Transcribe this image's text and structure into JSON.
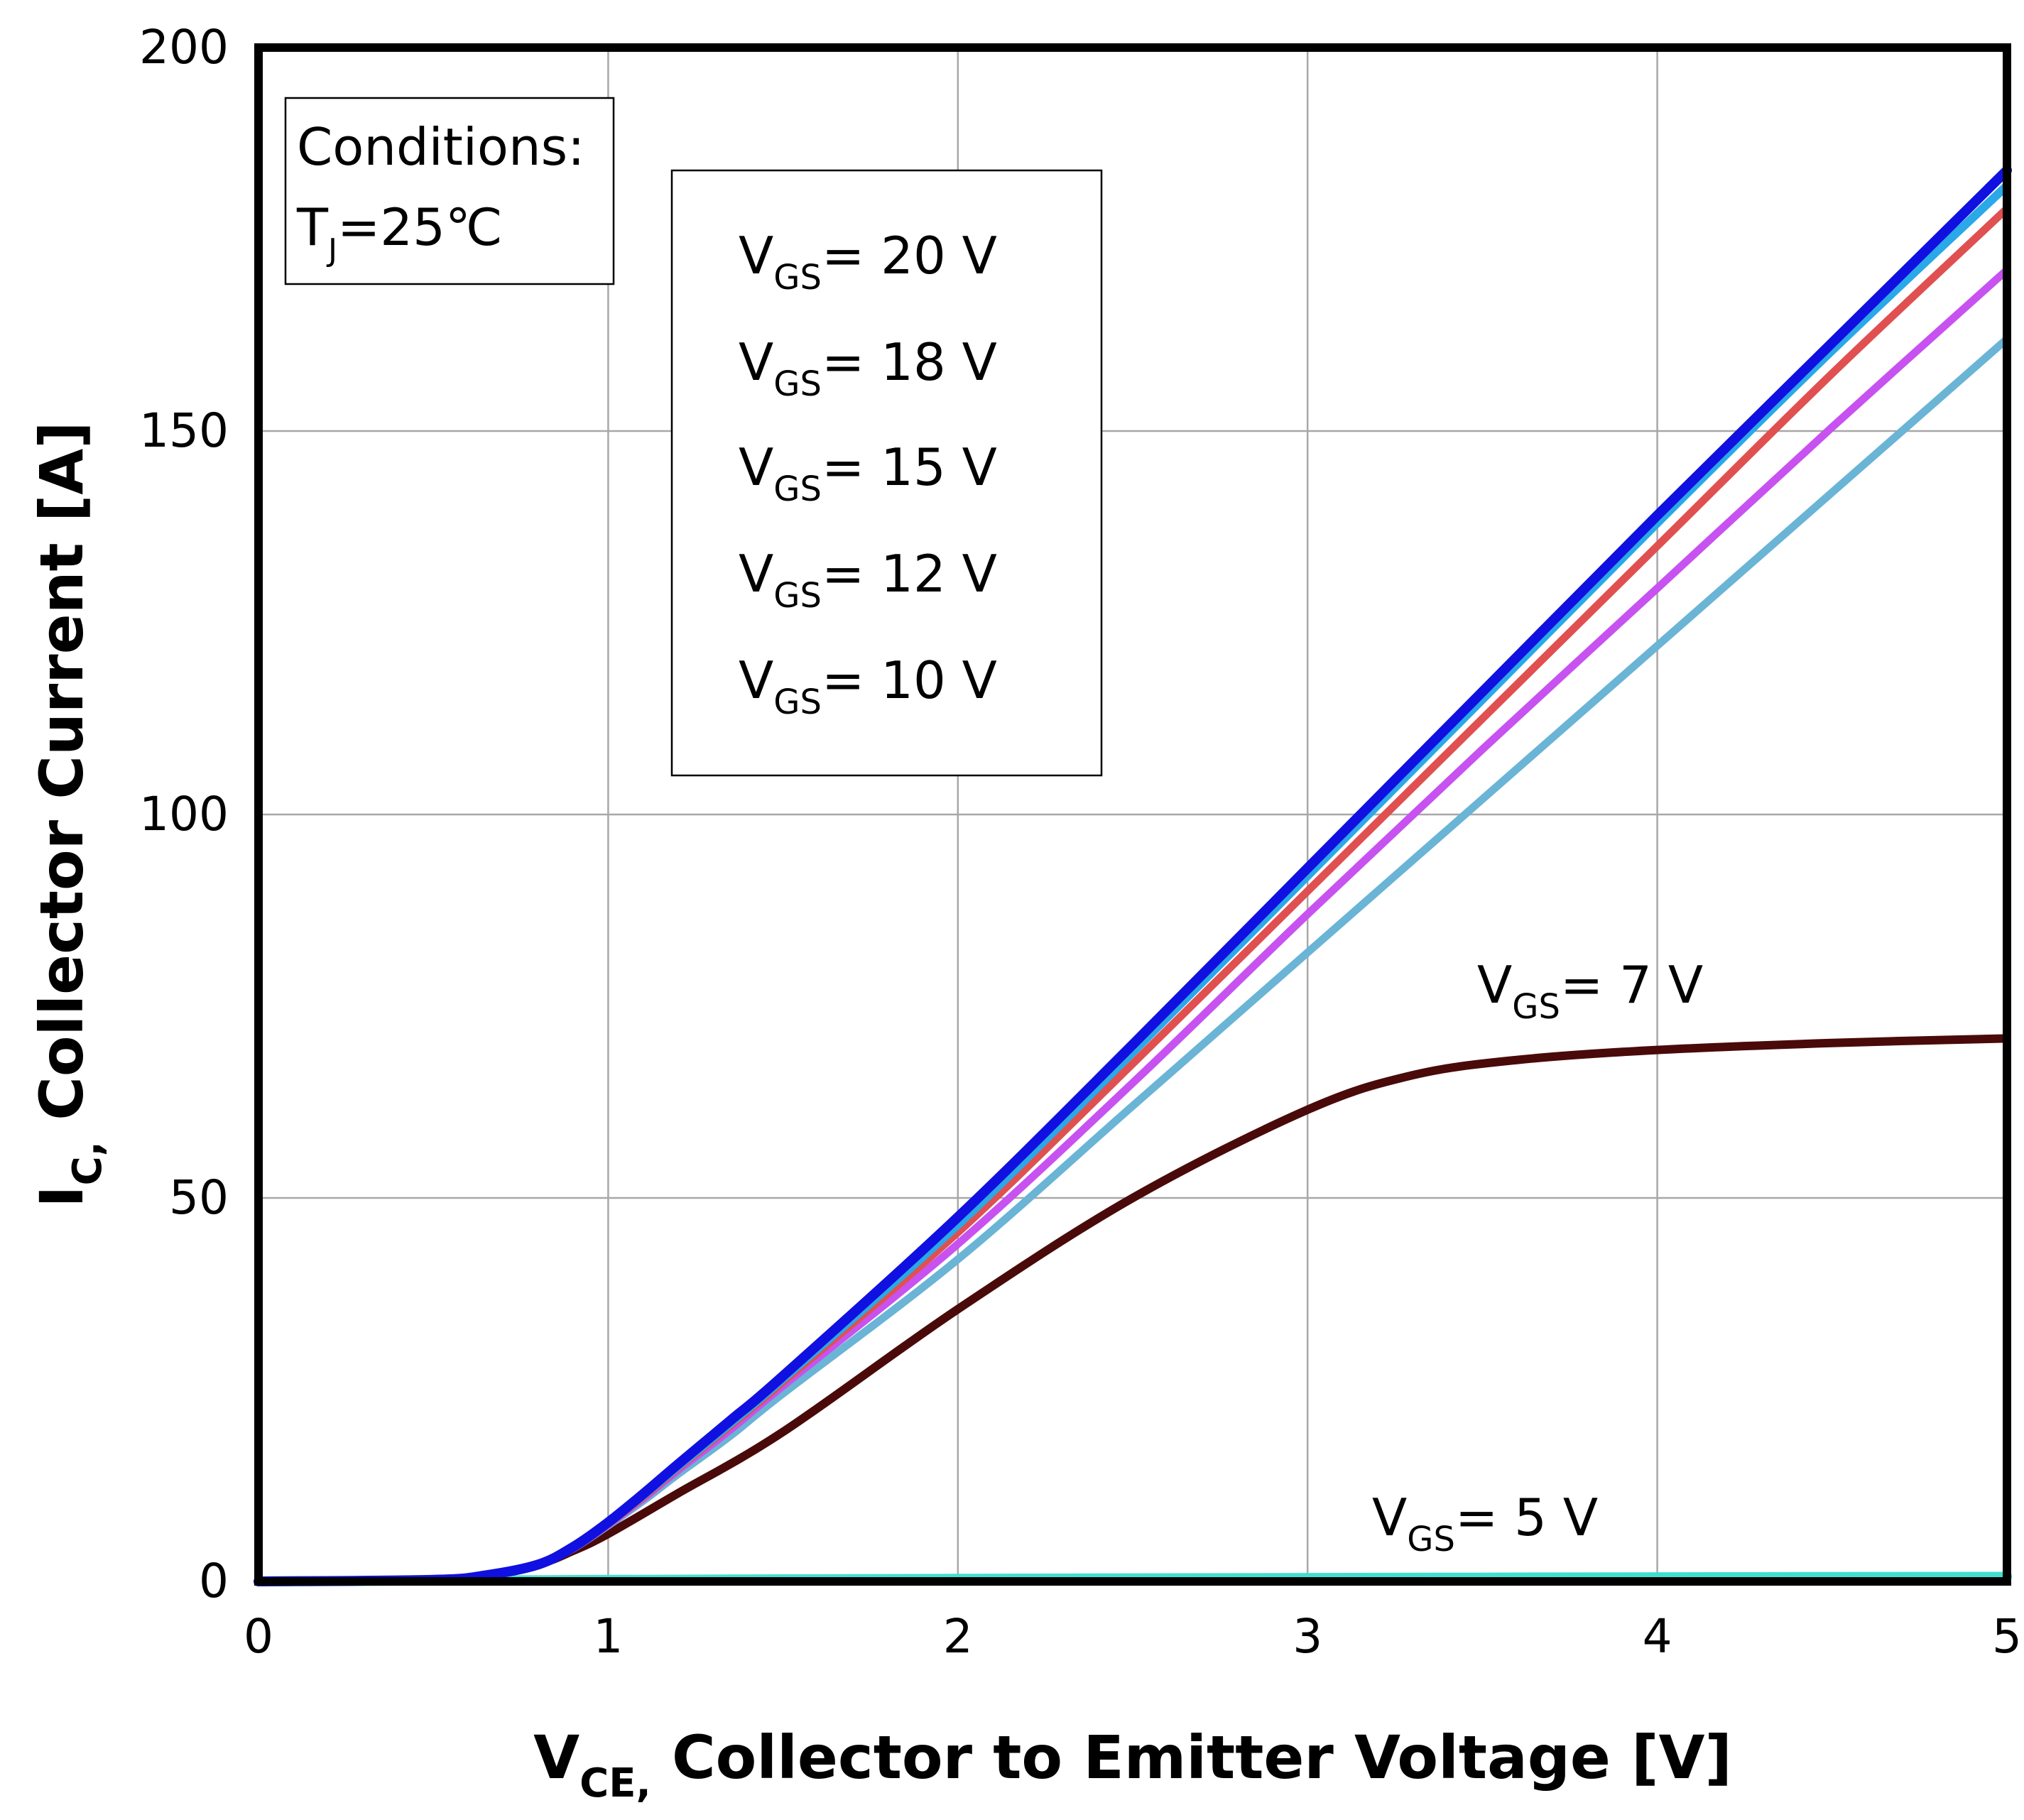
{
  "chart_data": {
    "type": "line",
    "title": "",
    "xlabel": {
      "main": "V",
      "sub": "CE,",
      "rest": " Collector to Emitter Voltage [V]"
    },
    "ylabel": {
      "main": "I",
      "sub": "C,",
      "rest": " Collector Current [A]"
    },
    "xlim": [
      0,
      5
    ],
    "ylim": [
      0,
      200
    ],
    "xticks": [
      0,
      1,
      2,
      3,
      4,
      5
    ],
    "yticks": [
      0,
      50,
      100,
      150,
      200
    ],
    "xtick_labels": [
      "0",
      "1",
      "2",
      "3",
      "4",
      "5"
    ],
    "ytick_labels": [
      "0",
      "50",
      "100",
      "150",
      "200"
    ],
    "grid": true,
    "conditions": {
      "line1": "Conditions:",
      "t": "T",
      "t_sub": "J",
      "t_rest": "=25℃"
    },
    "legend_text": [
      {
        "main": "V",
        "sub": "GS",
        "rest": "= 20 V"
      },
      {
        "main": "V",
        "sub": "GS",
        "rest": "= 18 V"
      },
      {
        "main": "V",
        "sub": "GS",
        "rest": "= 15 V"
      },
      {
        "main": "V",
        "sub": "GS",
        "rest": "= 12 V"
      },
      {
        "main": "V",
        "sub": "GS",
        "rest": "= 10 V"
      }
    ],
    "curve_labels": {
      "vgs7": {
        "main": "V",
        "sub": "GS",
        "rest": "= 7 V"
      },
      "vgs5": {
        "main": "V",
        "sub": "GS",
        "rest": "= 5 V"
      }
    },
    "series": [
      {
        "name": "VGS=5V",
        "color": "#40e0d0",
        "x": [
          0,
          1,
          2,
          3,
          4,
          5
        ],
        "y": [
          0,
          0.2,
          0.35,
          0.45,
          0.55,
          0.6
        ]
      },
      {
        "name": "VGS=7V",
        "color": "#4a0a0a",
        "x": [
          0,
          0.5,
          0.65,
          0.8,
          0.9,
          1.0,
          1.2,
          1.5,
          2.0,
          2.5,
          3.0,
          3.3,
          3.6,
          4.0,
          4.5,
          5.0
        ],
        "y": [
          0,
          0.2,
          0.8,
          2.2,
          4.0,
          6.2,
          11.5,
          19.5,
          35.5,
          50.0,
          61.5,
          66.0,
          68.0,
          69.3,
          70.2,
          70.8
        ]
      },
      {
        "name": "VGS=10V",
        "color": "#6ab4d6",
        "x": [
          0,
          0.5,
          0.65,
          0.8,
          0.9,
          1.0,
          1.1,
          1.2,
          1.35,
          1.5,
          2.0,
          2.5,
          3.0,
          3.5,
          4.0,
          4.5,
          5.0
        ],
        "y": [
          0,
          0.2,
          0.8,
          2.2,
          4.3,
          7.3,
          10.5,
          14.0,
          19.0,
          24.5,
          42.0,
          62.0,
          82.0,
          102.0,
          122.0,
          142.0,
          162.0
        ]
      },
      {
        "name": "VGS=12V",
        "color": "#c752f0",
        "x": [
          0,
          0.5,
          0.65,
          0.8,
          0.9,
          1.0,
          1.1,
          1.2,
          1.35,
          1.5,
          2.0,
          2.5,
          3.0,
          3.5,
          4.0,
          4.5,
          5.0
        ],
        "y": [
          0,
          0.2,
          0.8,
          2.2,
          4.3,
          7.4,
          10.8,
          14.5,
          19.8,
          25.5,
          44.0,
          65.0,
          87.0,
          108.5,
          129.5,
          150.5,
          171.0
        ]
      },
      {
        "name": "VGS=15V",
        "color": "#e05050",
        "x": [
          0,
          0.5,
          0.65,
          0.8,
          0.9,
          1.0,
          1.1,
          1.2,
          1.35,
          1.5,
          2.0,
          2.5,
          3.0,
          3.5,
          4.0,
          4.5,
          5.0
        ],
        "y": [
          0,
          0.2,
          0.8,
          2.2,
          4.4,
          7.5,
          11.0,
          14.8,
          20.3,
          26.0,
          45.5,
          67.5,
          90.0,
          112.5,
          135.0,
          157.5,
          179.0
        ]
      },
      {
        "name": "VGS=18V",
        "color": "#2aa8e8",
        "x": [
          0,
          0.5,
          0.65,
          0.8,
          0.9,
          1.0,
          1.1,
          1.2,
          1.35,
          1.5,
          2.0,
          2.5,
          3.0,
          3.5,
          4.0,
          4.5,
          5.0
        ],
        "y": [
          0,
          0.2,
          0.8,
          2.2,
          4.4,
          7.6,
          11.2,
          15.0,
          20.6,
          26.4,
          46.5,
          69.0,
          92.0,
          115.0,
          138.0,
          160.5,
          182.0
        ]
      },
      {
        "name": "VGS=20V",
        "color": "#1010e0",
        "x": [
          0,
          0.5,
          0.65,
          0.8,
          0.9,
          1.0,
          1.1,
          1.2,
          1.35,
          1.5,
          2.0,
          2.5,
          3.0,
          3.5,
          4.0,
          4.5,
          5.0
        ],
        "y": [
          0,
          0.2,
          0.8,
          2.2,
          4.5,
          7.7,
          11.4,
          15.3,
          21.0,
          26.8,
          47.5,
          70.0,
          93.0,
          116.0,
          139.0,
          161.5,
          184.0
        ]
      }
    ]
  }
}
